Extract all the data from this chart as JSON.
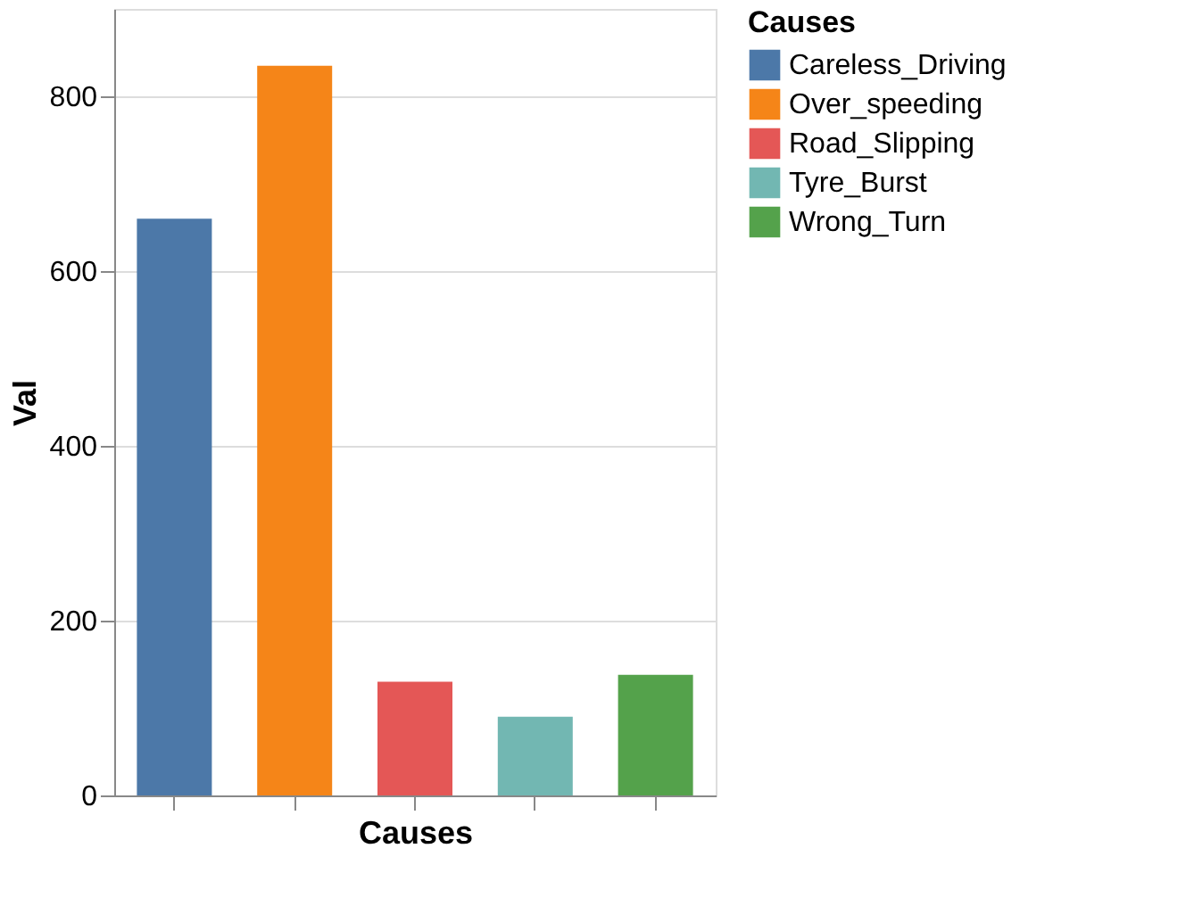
{
  "chart_data": {
    "type": "bar",
    "xlabel": "Causes",
    "ylabel": "Val",
    "legend_title": "Causes",
    "categories": [
      null,
      null,
      null,
      null,
      null
    ],
    "series": [
      {
        "name": "Careless_Driving",
        "color": "#4c78a8",
        "values": [
          660,
          null,
          null,
          null,
          null
        ]
      },
      {
        "name": "Over_speeding",
        "color": "#f58518",
        "values": [
          null,
          835,
          null,
          null,
          null
        ]
      },
      {
        "name": "Road_Slipping",
        "color": "#e45756",
        "values": [
          null,
          null,
          130,
          null,
          null
        ]
      },
      {
        "name": "Tyre_Burst",
        "color": "#72b7b2",
        "values": [
          null,
          null,
          null,
          90,
          null
        ]
      },
      {
        "name": "Wrong_Turn",
        "color": "#54a24b",
        "values": [
          null,
          null,
          null,
          null,
          138
        ]
      }
    ],
    "ylim": [
      0,
      900
    ],
    "yticks": [
      0,
      200,
      400,
      600,
      800
    ],
    "grid": "y",
    "legend": "top right"
  }
}
